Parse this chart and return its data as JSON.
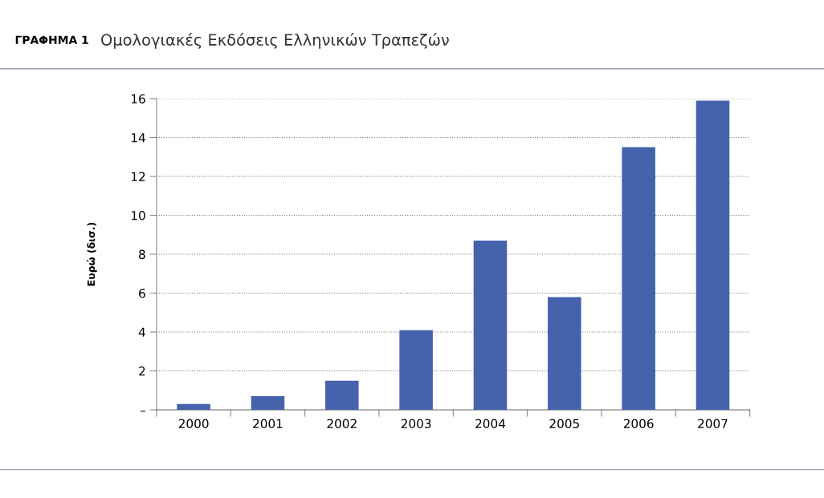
{
  "chart_data": {
    "type": "bar",
    "title": "ΓΡΑΦΗΜΑ 1",
    "subtitle": "Ομολογιακές Εκδόσεις Ελληνικών Τραπεζών",
    "ylabel": "Ευρώ (δισ.)",
    "categories": [
      "2000",
      "2001",
      "2002",
      "2003",
      "2004",
      "2005",
      "2006",
      "2007"
    ],
    "values": [
      0.3,
      0.7,
      1.5,
      4.1,
      8.7,
      5.8,
      13.5,
      15.9
    ],
    "color": "#4562ad",
    "ylim": [
      0,
      16
    ],
    "yticks": [
      {
        "value": 0,
        "label": "–"
      },
      2,
      4,
      6,
      8,
      10,
      12,
      14,
      16
    ],
    "grid": "y"
  }
}
